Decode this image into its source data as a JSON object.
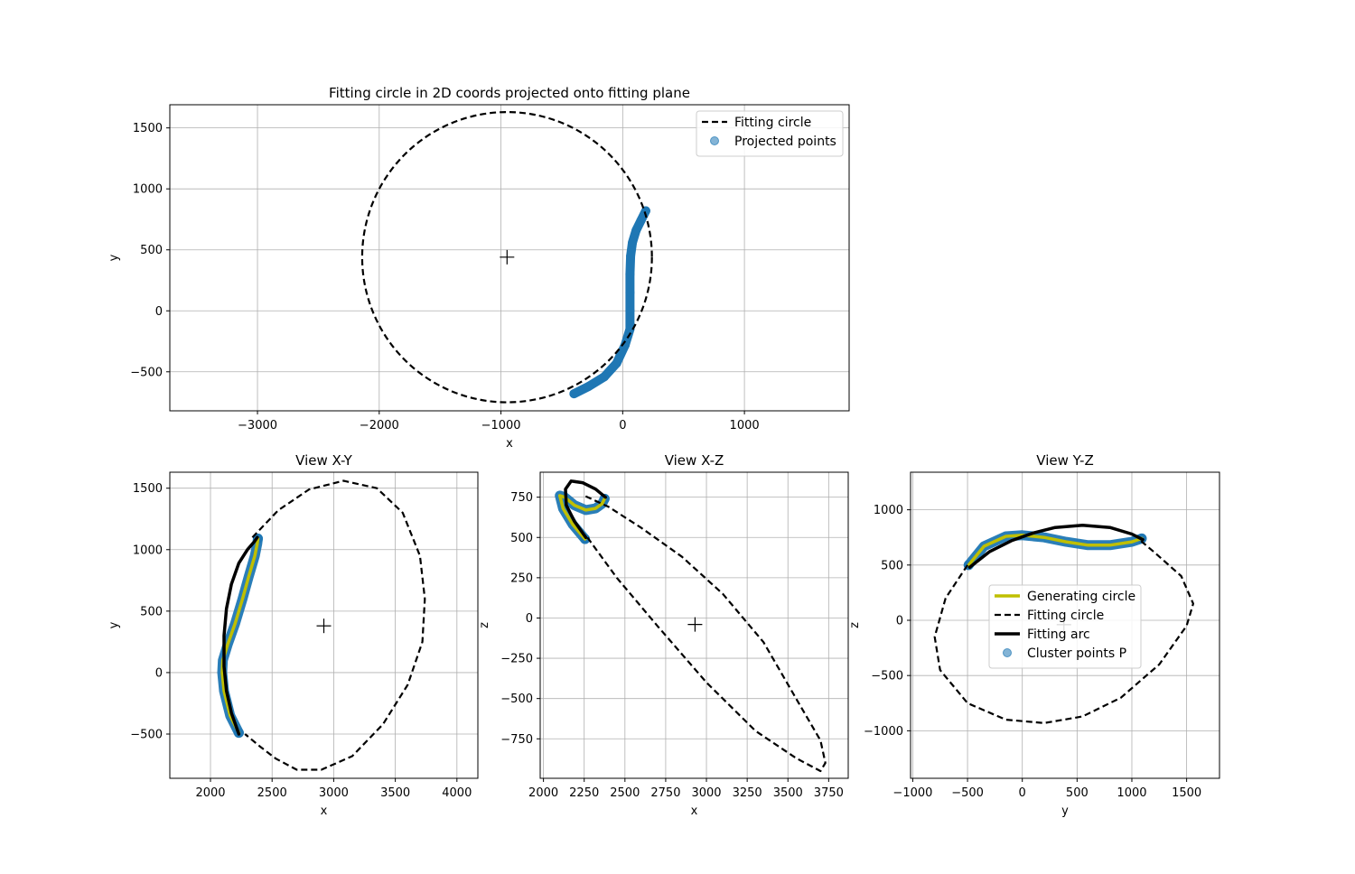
{
  "figure": {
    "background": "#ffffff",
    "colors": {
      "scatter": "#1f77b4",
      "generating": "#bfbf00",
      "fit": "#000000",
      "grid": "#b0b0b0"
    }
  },
  "chart_data": [
    {
      "type": "scatter",
      "title": "Fitting circle in 2D coords projected onto fitting plane",
      "xlabel": "x",
      "ylabel": "y",
      "xlim": [
        -3720,
        1860
      ],
      "ylim": [
        -820,
        1690
      ],
      "xticks": [
        -3000,
        -2000,
        -1000,
        0,
        1000
      ],
      "xtick_labels": [
        "−3000",
        "−2000",
        "−1000",
        "0",
        "1000"
      ],
      "yticks": [
        -500,
        0,
        500,
        1000,
        1500
      ],
      "ytick_labels": [
        "−500",
        "0",
        "500",
        "1000",
        "1500"
      ],
      "grid": true,
      "legend": {
        "position": "upper right",
        "entries": [
          {
            "label": "Fitting circle",
            "kind": "dashed-line",
            "color": "#000000"
          },
          {
            "label": "Projected points",
            "kind": "marker",
            "color": "#1f77b4"
          }
        ]
      },
      "center": [
        -950,
        440
      ],
      "series": [
        {
          "label": "Fitting circle",
          "kind": "circle",
          "center": [
            -950,
            440
          ],
          "radius": 1190
        },
        {
          "label": "Projected points",
          "kind": "points",
          "x": [
            -400,
            -280,
            -150,
            -50,
            20,
            60,
            60,
            60,
            60,
            65,
            80,
            110,
            150,
            190
          ],
          "y": [
            -680,
            -620,
            -540,
            -430,
            -280,
            -150,
            0,
            150,
            300,
            450,
            560,
            660,
            740,
            820
          ]
        }
      ]
    },
    {
      "type": "line",
      "title": "View X-Y",
      "xlabel": "x",
      "ylabel": "y",
      "xlim": [
        1670,
        4170
      ],
      "ylim": [
        -860,
        1630
      ],
      "xticks": [
        2000,
        2500,
        3000,
        3500,
        4000
      ],
      "xtick_labels": [
        "2000",
        "2500",
        "3000",
        "3500",
        "4000"
      ],
      "yticks": [
        -500,
        0,
        500,
        1000,
        1500
      ],
      "ytick_labels": [
        "−500",
        "0",
        "500",
        "1000",
        "1500"
      ],
      "grid": true,
      "center": [
        2920,
        380
      ],
      "series": [
        {
          "label": "Fitting circle",
          "kind": "dashed",
          "x": [
            2340,
            2550,
            2800,
            3080,
            3350,
            3560,
            3700,
            3740,
            3720,
            3600,
            3400,
            3150,
            2900,
            2700,
            2530,
            2400,
            2280
          ],
          "y": [
            1100,
            1320,
            1490,
            1560,
            1500,
            1300,
            950,
            600,
            250,
            -100,
            -420,
            -680,
            -790,
            -790,
            -700,
            -600,
            -500
          ]
        },
        {
          "label": "Fitting arc",
          "x": [
            2230,
            2170,
            2130,
            2110,
            2110,
            2130,
            2170,
            2230,
            2300,
            2360,
            2380
          ],
          "y": [
            -500,
            -330,
            -150,
            50,
            300,
            520,
            720,
            890,
            1000,
            1070,
            1100
          ]
        },
        {
          "label": "Generating circle",
          "x": [
            2230,
            2160,
            2110,
            2095,
            2100,
            2140,
            2200,
            2260,
            2310,
            2360,
            2380,
            2385
          ],
          "y": [
            -490,
            -350,
            -150,
            0,
            100,
            230,
            400,
            600,
            780,
            950,
            1050,
            1090
          ]
        },
        {
          "label": "Cluster points P",
          "x": [
            2230,
            2160,
            2110,
            2095,
            2100,
            2140,
            2200,
            2260,
            2310,
            2360,
            2380,
            2385
          ],
          "y": [
            -490,
            -350,
            -150,
            0,
            100,
            230,
            400,
            600,
            780,
            950,
            1050,
            1090
          ]
        }
      ]
    },
    {
      "type": "line",
      "title": "View X-Z",
      "xlabel": "x",
      "ylabel": "z",
      "xlim": [
        1980,
        3870
      ],
      "ylim": [
        -995,
        905
      ],
      "xticks": [
        2000,
        2250,
        2500,
        2750,
        3000,
        3250,
        3500,
        3750
      ],
      "xtick_labels": [
        "2000",
        "2250",
        "2500",
        "2750",
        "3000",
        "3250",
        "3500",
        "3750"
      ],
      "yticks": [
        -750,
        -500,
        -250,
        0,
        250,
        500,
        750
      ],
      "ytick_labels": [
        "−750",
        "−500",
        "−250",
        "0",
        "250",
        "500",
        "750"
      ],
      "grid": true,
      "center": [
        2930,
        -40
      ],
      "series": [
        {
          "label": "Fitting circle",
          "kind": "dashed",
          "x": [
            2270,
            2450,
            2700,
            3000,
            3300,
            3550,
            3700,
            3730,
            3700,
            3550,
            3350,
            3100,
            2850,
            2600,
            2400,
            2250
          ],
          "y": [
            500,
            250,
            -50,
            -400,
            -700,
            -870,
            -950,
            -900,
            -760,
            -500,
            -150,
            150,
            380,
            560,
            690,
            760
          ]
        },
        {
          "label": "Fitting arc",
          "x": [
            2260,
            2190,
            2140,
            2135,
            2170,
            2240,
            2320,
            2380
          ],
          "y": [
            500,
            600,
            700,
            800,
            850,
            840,
            800,
            750
          ]
        },
        {
          "label": "Generating circle",
          "x": [
            2255,
            2180,
            2120,
            2100,
            2130,
            2190,
            2260,
            2320,
            2360,
            2375
          ],
          "y": [
            490,
            580,
            680,
            760,
            750,
            700,
            670,
            680,
            710,
            740
          ]
        },
        {
          "label": "Cluster points P",
          "x": [
            2255,
            2180,
            2120,
            2100,
            2130,
            2190,
            2260,
            2320,
            2360,
            2375
          ],
          "y": [
            490,
            580,
            680,
            760,
            750,
            700,
            670,
            680,
            710,
            740
          ]
        }
      ]
    },
    {
      "type": "line",
      "title": "View Y-Z",
      "xlabel": "y",
      "ylabel": "z",
      "xlim": [
        -1020,
        1800
      ],
      "ylim": [
        -1430,
        1340
      ],
      "xticks": [
        -1000,
        -500,
        0,
        500,
        1000,
        1500
      ],
      "xtick_labels": [
        "−1000",
        "−500",
        "0",
        "500",
        "1000",
        "1500"
      ],
      "yticks": [
        -1000,
        -500,
        0,
        500,
        1000
      ],
      "ytick_labels": [
        "−1000",
        "−500",
        "0",
        "500",
        "1000"
      ],
      "grid": true,
      "center": [
        380,
        -40
      ],
      "legend": {
        "position": "center",
        "entries": [
          {
            "label": "Generating circle",
            "kind": "line",
            "color": "#bfbf00"
          },
          {
            "label": "Fitting circle",
            "kind": "dashed-line",
            "color": "#000000"
          },
          {
            "label": "Fitting arc",
            "kind": "line",
            "color": "#000000"
          },
          {
            "label": "Cluster points P",
            "kind": "marker",
            "color": "#1f77b4"
          }
        ]
      },
      "series": [
        {
          "label": "Fitting circle",
          "kind": "dashed",
          "x": [
            -500,
            -700,
            -800,
            -750,
            -500,
            -150,
            200,
            550,
            900,
            1250,
            1500,
            1560,
            1450,
            1200,
            1080
          ],
          "y": [
            500,
            200,
            -150,
            -450,
            -750,
            -900,
            -930,
            -870,
            -700,
            -400,
            -50,
            150,
            400,
            620,
            720
          ]
        },
        {
          "label": "Fitting arc",
          "x": [
            -480,
            -300,
            -100,
            100,
            300,
            550,
            800,
            1000,
            1100
          ],
          "y": [
            480,
            620,
            720,
            790,
            840,
            860,
            840,
            780,
            730
          ]
        },
        {
          "label": "Generating circle",
          "x": [
            -490,
            -350,
            -150,
            0,
            200,
            400,
            600,
            800,
            1000,
            1090
          ],
          "y": [
            500,
            670,
            760,
            770,
            750,
            710,
            680,
            680,
            710,
            740
          ]
        },
        {
          "label": "Cluster points P",
          "x": [
            -490,
            -350,
            -150,
            0,
            200,
            400,
            600,
            800,
            1000,
            1090
          ],
          "y": [
            500,
            670,
            760,
            770,
            750,
            710,
            680,
            680,
            710,
            740
          ]
        }
      ]
    }
  ]
}
